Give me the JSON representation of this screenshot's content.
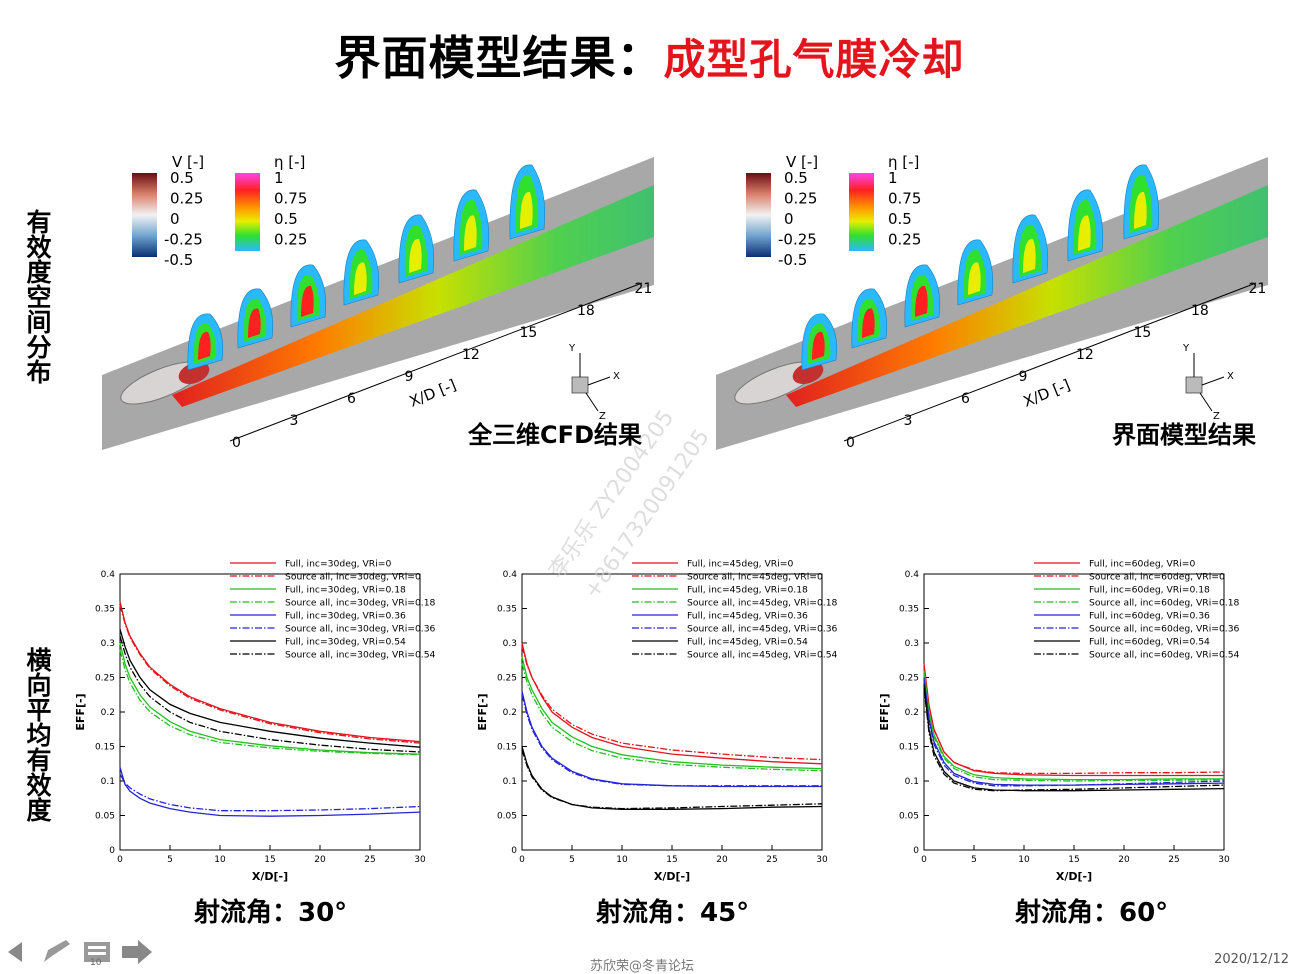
{
  "title": {
    "main": "界面模型结果：",
    "highlight": "成型孔气膜冷却"
  },
  "side_labels": {
    "top": "有效度空间分布",
    "bottom": "横向平均有效度"
  },
  "contour_panels": [
    {
      "caption": "全三维CFD结果",
      "v_legend": {
        "title": "V [-]",
        "ticks": [
          "0.5",
          "0.25",
          "0",
          "-0.25",
          "-0.5"
        ]
      },
      "eta_legend": {
        "title": "η [-]",
        "ticks": [
          "1",
          "0.75",
          "0.5",
          "0.25"
        ]
      },
      "axis_label": "X/D [-]",
      "axis_ticks": [
        "0",
        "3",
        "6",
        "9",
        "12",
        "15",
        "18",
        "21"
      ],
      "triad": [
        "Y",
        "X",
        "Z"
      ]
    },
    {
      "caption": "界面模型结果",
      "v_legend": {
        "title": "V [-]",
        "ticks": [
          "0.5",
          "0.25",
          "0",
          "-0.25",
          "-0.5"
        ]
      },
      "eta_legend": {
        "title": "η [-]",
        "ticks": [
          "1",
          "0.75",
          "0.5",
          "0.25"
        ]
      },
      "axis_label": "X/D [-]",
      "axis_ticks": [
        "0",
        "3",
        "6",
        "9",
        "12",
        "15",
        "18",
        "21"
      ],
      "triad": [
        "Y",
        "X",
        "Z"
      ]
    }
  ],
  "angle_labels": [
    "射流角：30°",
    "射流角：45°",
    "射流角：60°"
  ],
  "footer": {
    "center": "苏欣荣@冬青论坛",
    "date": "2020/12/12",
    "page_number": "10"
  },
  "watermark": {
    "line1": "李乐乐  ZY2004205",
    "line2": "+8617320091205"
  },
  "colors": {
    "red": "#e3141c",
    "green": "#22c11f",
    "blue": "#2525d6",
    "black": "#000000"
  },
  "chart_data": [
    {
      "type": "line",
      "xlabel": "X/D[-]",
      "ylabel": "EFF[-]",
      "xlim": [
        0,
        30
      ],
      "ylim": [
        0,
        0.4
      ],
      "xticks": [
        "0",
        "5",
        "10",
        "15",
        "20",
        "25",
        "30"
      ],
      "yticks": [
        "0",
        "0.05",
        "0.1",
        "0.15",
        "0.2",
        "0.25",
        "0.3",
        "0.35",
        "0.4"
      ],
      "legend_position": "top-right",
      "x": [
        0,
        0.5,
        1,
        2,
        3,
        5,
        7,
        10,
        15,
        20,
        25,
        30
      ],
      "series": [
        {
          "name": "Full, inc=30deg, VRi=0",
          "color": "#e3141c",
          "dash": "solid",
          "values": [
            0.36,
            0.33,
            0.31,
            0.285,
            0.265,
            0.24,
            0.222,
            0.205,
            0.185,
            0.172,
            0.163,
            0.157
          ]
        },
        {
          "name": "Source all, inc=30deg, VRi=0",
          "color": "#e3141c",
          "dash": "dashdot",
          "values": [
            0.355,
            0.328,
            0.308,
            0.283,
            0.263,
            0.238,
            0.22,
            0.203,
            0.183,
            0.17,
            0.161,
            0.155
          ]
        },
        {
          "name": "Full, inc=30deg, VRi=0.18",
          "color": "#22c11f",
          "dash": "solid",
          "values": [
            0.3,
            0.27,
            0.25,
            0.225,
            0.207,
            0.186,
            0.172,
            0.16,
            0.151,
            0.145,
            0.141,
            0.139
          ]
        },
        {
          "name": "Source all, inc=30deg, VRi=0.18",
          "color": "#22c11f",
          "dash": "dashdot",
          "values": [
            0.29,
            0.262,
            0.242,
            0.217,
            0.2,
            0.18,
            0.167,
            0.156,
            0.148,
            0.143,
            0.14,
            0.138
          ]
        },
        {
          "name": "Full, inc=30deg, VRi=0.36",
          "color": "#2525d6",
          "dash": "solid",
          "values": [
            0.12,
            0.095,
            0.085,
            0.075,
            0.068,
            0.06,
            0.055,
            0.05,
            0.049,
            0.05,
            0.052,
            0.055
          ]
        },
        {
          "name": "Source all, inc=30deg, VRi=0.36",
          "color": "#2525d6",
          "dash": "dashdot",
          "values": [
            0.11,
            0.097,
            0.09,
            0.081,
            0.074,
            0.066,
            0.061,
            0.057,
            0.057,
            0.058,
            0.06,
            0.063
          ]
        },
        {
          "name": "Full, inc=30deg, VRi=0.54",
          "color": "#000000",
          "dash": "solid",
          "values": [
            0.32,
            0.295,
            0.275,
            0.25,
            0.232,
            0.211,
            0.198,
            0.185,
            0.172,
            0.162,
            0.155,
            0.149
          ]
        },
        {
          "name": "Source all, inc=30deg, VRi=0.54",
          "color": "#000000",
          "dash": "dashdot",
          "values": [
            0.31,
            0.285,
            0.265,
            0.24,
            0.222,
            0.2,
            0.185,
            0.172,
            0.16,
            0.152,
            0.146,
            0.142
          ]
        }
      ]
    },
    {
      "type": "line",
      "xlabel": "X/D[-]",
      "ylabel": "EFF[-]",
      "xlim": [
        0,
        30
      ],
      "ylim": [
        0,
        0.4
      ],
      "xticks": [
        "0",
        "5",
        "10",
        "15",
        "20",
        "25",
        "30"
      ],
      "yticks": [
        "0",
        "0.05",
        "0.1",
        "0.15",
        "0.2",
        "0.25",
        "0.3",
        "0.35",
        "0.4"
      ],
      "legend_position": "top-right",
      "x": [
        0,
        0.5,
        1,
        2,
        3,
        5,
        7,
        10,
        15,
        20,
        25,
        30
      ],
      "series": [
        {
          "name": "Full, inc=45deg, VRi=0",
          "color": "#e3141c",
          "dash": "solid",
          "values": [
            0.3,
            0.27,
            0.25,
            0.222,
            0.2,
            0.178,
            0.163,
            0.15,
            0.139,
            0.133,
            0.128,
            0.125
          ]
        },
        {
          "name": "Source all, inc=45deg, VRi=0",
          "color": "#e3141c",
          "dash": "dashdot",
          "values": [
            0.295,
            0.268,
            0.25,
            0.224,
            0.204,
            0.182,
            0.168,
            0.155,
            0.145,
            0.139,
            0.134,
            0.131
          ]
        },
        {
          "name": "Full, inc=45deg, VRi=0.18",
          "color": "#22c11f",
          "dash": "solid",
          "values": [
            0.28,
            0.25,
            0.232,
            0.205,
            0.185,
            0.164,
            0.15,
            0.138,
            0.128,
            0.123,
            0.12,
            0.118
          ]
        },
        {
          "name": "Source all, inc=45deg, VRi=0.18",
          "color": "#22c11f",
          "dash": "dashdot",
          "values": [
            0.27,
            0.243,
            0.225,
            0.198,
            0.178,
            0.157,
            0.144,
            0.133,
            0.124,
            0.12,
            0.117,
            0.115
          ]
        },
        {
          "name": "Full, inc=45deg, VRi=0.36",
          "color": "#2525d6",
          "dash": "solid",
          "values": [
            0.23,
            0.2,
            0.178,
            0.15,
            0.133,
            0.114,
            0.103,
            0.096,
            0.093,
            0.092,
            0.092,
            0.092
          ]
        },
        {
          "name": "Source all, inc=45deg, VRi=0.36",
          "color": "#2525d6",
          "dash": "dashdot",
          "values": [
            0.225,
            0.196,
            0.175,
            0.148,
            0.131,
            0.112,
            0.102,
            0.095,
            0.093,
            0.093,
            0.093,
            0.093
          ]
        },
        {
          "name": "Full, inc=45deg, VRi=0.54",
          "color": "#000000",
          "dash": "solid",
          "values": [
            0.15,
            0.125,
            0.108,
            0.088,
            0.077,
            0.066,
            0.061,
            0.059,
            0.059,
            0.06,
            0.062,
            0.063
          ]
        },
        {
          "name": "Source all, inc=45deg, VRi=0.54",
          "color": "#000000",
          "dash": "dashdot",
          "values": [
            0.145,
            0.122,
            0.106,
            0.087,
            0.076,
            0.066,
            0.062,
            0.06,
            0.061,
            0.063,
            0.065,
            0.067
          ]
        }
      ]
    },
    {
      "type": "line",
      "xlabel": "X/D[-]",
      "ylabel": "EFF[-]",
      "xlim": [
        0,
        30
      ],
      "ylim": [
        0,
        0.4
      ],
      "xticks": [
        "0",
        "5",
        "10",
        "15",
        "20",
        "25",
        "30"
      ],
      "yticks": [
        "0",
        "0.05",
        "0.1",
        "0.15",
        "0.2",
        "0.25",
        "0.3",
        "0.35",
        "0.4"
      ],
      "legend_position": "top-right",
      "x": [
        0,
        0.5,
        1,
        2,
        3,
        5,
        7,
        10,
        15,
        20,
        25,
        30
      ],
      "series": [
        {
          "name": "Full, inc=60deg, VRi=0",
          "color": "#e3141c",
          "dash": "solid",
          "values": [
            0.27,
            0.21,
            0.175,
            0.142,
            0.127,
            0.115,
            0.111,
            0.109,
            0.108,
            0.108,
            0.108,
            0.108
          ]
        },
        {
          "name": "Source all, inc=60deg, VRi=0",
          "color": "#e3141c",
          "dash": "dashdot",
          "values": [
            0.265,
            0.208,
            0.174,
            0.142,
            0.127,
            0.116,
            0.112,
            0.111,
            0.111,
            0.112,
            0.112,
            0.113
          ]
        },
        {
          "name": "Full, inc=60deg, VRi=0.18",
          "color": "#22c11f",
          "dash": "solid",
          "values": [
            0.26,
            0.2,
            0.167,
            0.136,
            0.121,
            0.109,
            0.105,
            0.103,
            0.102,
            0.102,
            0.103,
            0.103
          ]
        },
        {
          "name": "Source all, inc=60deg, VRi=0.18",
          "color": "#22c11f",
          "dash": "dashdot",
          "values": [
            0.255,
            0.197,
            0.164,
            0.133,
            0.118,
            0.106,
            0.102,
            0.101,
            0.1,
            0.101,
            0.101,
            0.102
          ]
        },
        {
          "name": "Full, inc=60deg, VRi=0.36",
          "color": "#2525d6",
          "dash": "solid",
          "values": [
            0.25,
            0.19,
            0.157,
            0.127,
            0.111,
            0.099,
            0.095,
            0.094,
            0.094,
            0.095,
            0.096,
            0.097
          ]
        },
        {
          "name": "Source all, inc=60deg, VRi=0.36",
          "color": "#2525d6",
          "dash": "dashdot",
          "values": [
            0.245,
            0.186,
            0.153,
            0.123,
            0.108,
            0.097,
            0.093,
            0.093,
            0.094,
            0.096,
            0.098,
            0.1
          ]
        },
        {
          "name": "Full, inc=60deg, VRi=0.54",
          "color": "#000000",
          "dash": "solid",
          "values": [
            0.24,
            0.175,
            0.142,
            0.114,
            0.1,
            0.09,
            0.087,
            0.086,
            0.086,
            0.087,
            0.088,
            0.089
          ]
        },
        {
          "name": "Source all, inc=60deg, VRi=0.54",
          "color": "#000000",
          "dash": "dashdot",
          "values": [
            0.235,
            0.17,
            0.137,
            0.11,
            0.097,
            0.088,
            0.086,
            0.087,
            0.088,
            0.09,
            0.092,
            0.094
          ]
        }
      ]
    }
  ]
}
